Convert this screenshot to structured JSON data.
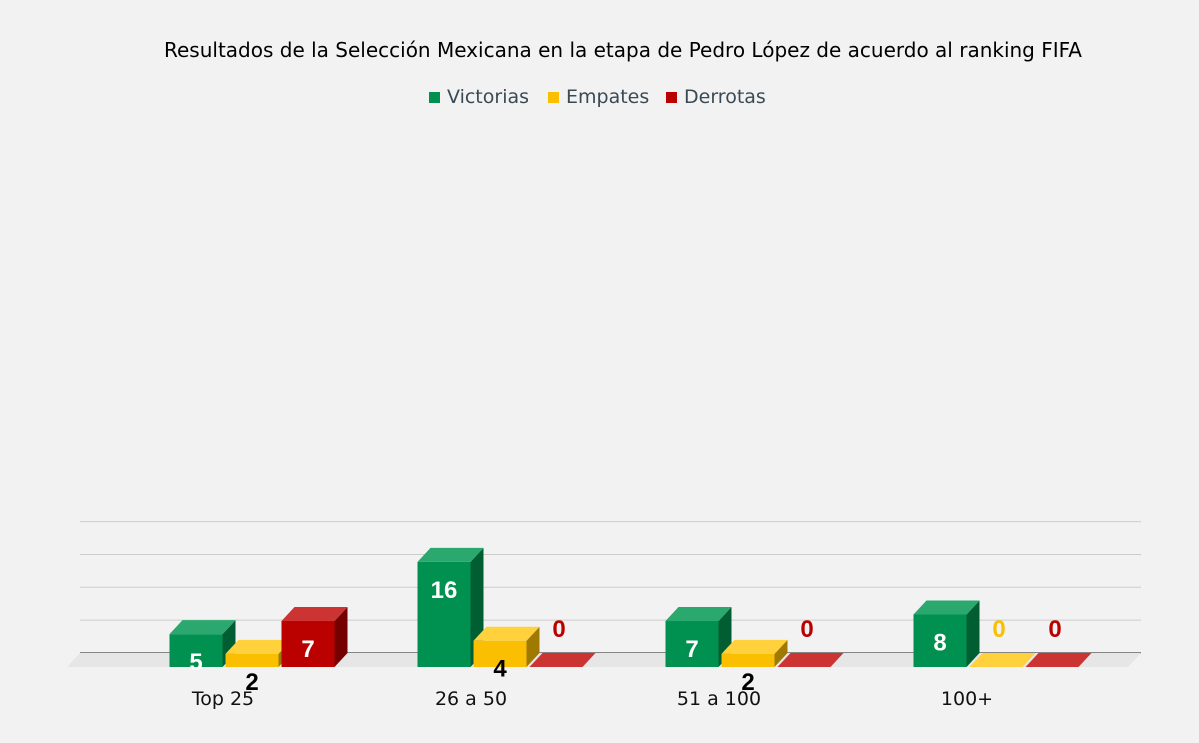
{
  "chart_data": {
    "type": "bar",
    "title": "Resultados de la Selección Mexicana en la etapa de Pedro López de acuerdo al ranking FIFA",
    "categories": [
      "Top 25",
      "26 a 50",
      "51 a 100",
      "100+"
    ],
    "series": [
      {
        "name": "Victorias",
        "values": [
          5,
          16,
          7,
          8
        ],
        "color": "#009150",
        "side_color": "#005e32",
        "top_color": "#2aa86e",
        "label_color": "#ffffff"
      },
      {
        "name": "Empates",
        "values": [
          2,
          4,
          2,
          0
        ],
        "color": "#f9bf00",
        "side_color": "#a07a00",
        "top_color": "#ffd23d",
        "label_color": "#000000",
        "zero_label_color": "#f9bf00"
      },
      {
        "name": "Derrotas",
        "values": [
          7,
          0,
          0,
          0
        ],
        "color": "#bb0000",
        "side_color": "#740000",
        "top_color": "#cc3333",
        "label_color": "#ffffff",
        "zero_label_color": "#bb0000"
      }
    ],
    "ylim": [
      0,
      20
    ],
    "grid": true,
    "legend_position": "top-center",
    "three_d": true
  }
}
